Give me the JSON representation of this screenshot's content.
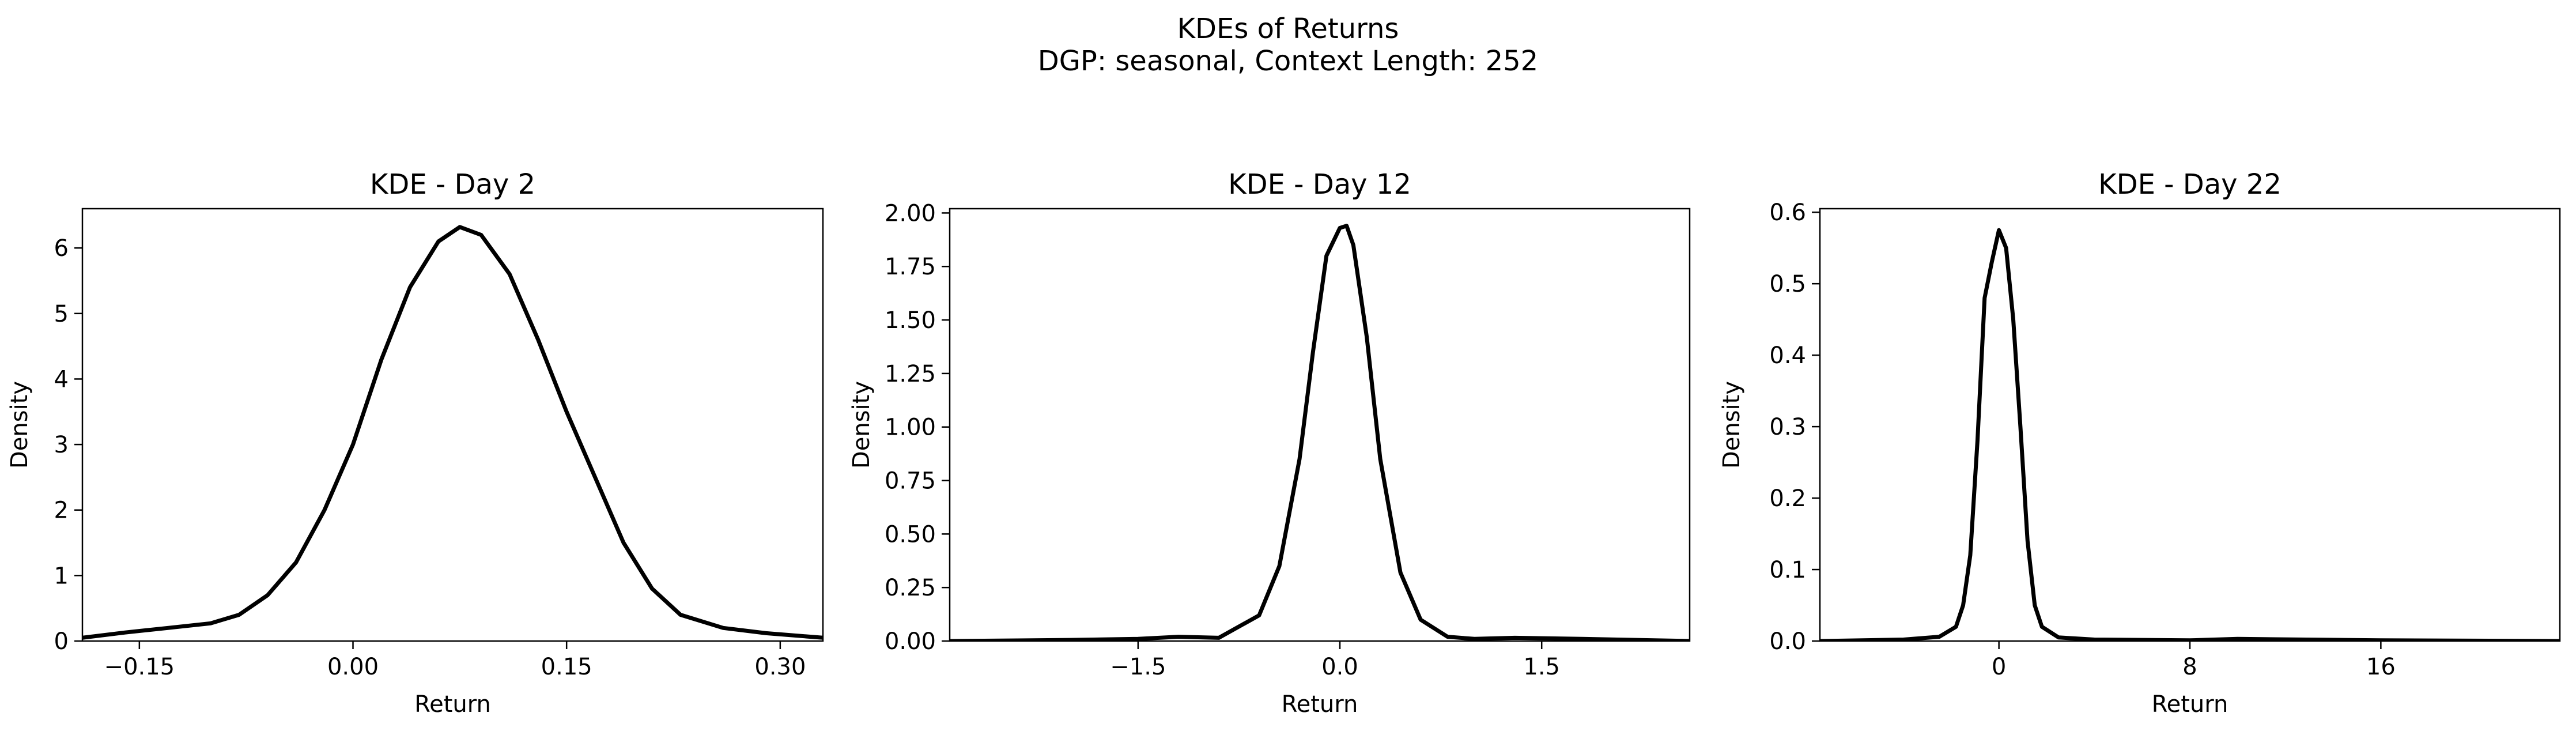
{
  "figure": {
    "title": "KDEs of Returns",
    "subtitle": "DGP: seasonal, Context Length: 252"
  },
  "chart_data": [
    {
      "type": "line",
      "title": "KDE - Day 2",
      "xlabel": "Return",
      "ylabel": "Density",
      "xlim": [
        -0.19,
        0.33
      ],
      "ylim": [
        0,
        6.6
      ],
      "xticks": [
        -0.15,
        0.0,
        0.15,
        0.3
      ],
      "xtick_labels": [
        "−0.15",
        "0.00",
        "0.15",
        "0.30"
      ],
      "yticks": [
        0,
        1,
        2,
        3,
        4,
        5,
        6
      ],
      "ytick_labels": [
        "0",
        "1",
        "2",
        "3",
        "4",
        "5",
        "6"
      ],
      "grid": false,
      "series": [
        {
          "color": "#000000",
          "x": [
            -0.19,
            -0.16,
            -0.13,
            -0.1,
            -0.08,
            -0.06,
            -0.04,
            -0.02,
            0.0,
            0.02,
            0.04,
            0.06,
            0.075,
            0.09,
            0.11,
            0.13,
            0.15,
            0.17,
            0.19,
            0.21,
            0.23,
            0.26,
            0.29,
            0.33
          ],
          "y": [
            0.05,
            0.13,
            0.2,
            0.27,
            0.4,
            0.7,
            1.2,
            2.0,
            3.0,
            4.3,
            5.4,
            6.1,
            6.32,
            6.2,
            5.6,
            4.6,
            3.5,
            2.5,
            1.5,
            0.8,
            0.4,
            0.2,
            0.12,
            0.05
          ]
        }
      ]
    },
    {
      "type": "line",
      "title": "KDE - Day 12",
      "xlabel": "Return",
      "ylabel": "Density",
      "xlim": [
        -2.9,
        2.6
      ],
      "ylim": [
        0,
        2.02
      ],
      "xticks": [
        -1.5,
        0.0,
        1.5
      ],
      "xtick_labels": [
        "−1.5",
        "0.0",
        "1.5"
      ],
      "yticks": [
        0,
        0.25,
        0.5,
        0.75,
        1.0,
        1.25,
        1.5,
        1.75,
        2.0
      ],
      "ytick_labels": [
        "0.00",
        "0.25",
        "0.50",
        "0.75",
        "1.00",
        "1.25",
        "1.50",
        "1.75",
        "2.00"
      ],
      "grid": false,
      "series": [
        {
          "color": "#000000",
          "x": [
            -2.9,
            -2.0,
            -1.5,
            -1.2,
            -0.9,
            -0.6,
            -0.45,
            -0.3,
            -0.2,
            -0.1,
            0.0,
            0.05,
            0.1,
            0.2,
            0.3,
            0.45,
            0.6,
            0.8,
            1.0,
            1.3,
            1.8,
            2.6
          ],
          "y": [
            0.0,
            0.005,
            0.01,
            0.02,
            0.015,
            0.12,
            0.35,
            0.85,
            1.35,
            1.8,
            1.93,
            1.94,
            1.85,
            1.42,
            0.85,
            0.32,
            0.1,
            0.02,
            0.01,
            0.015,
            0.01,
            0.0
          ]
        }
      ]
    },
    {
      "type": "line",
      "title": "KDE - Day 22",
      "xlabel": "Return",
      "ylabel": "Density",
      "xlim": [
        -7.5,
        23.5
      ],
      "ylim": [
        0,
        0.605
      ],
      "xticks": [
        0,
        8,
        16
      ],
      "xtick_labels": [
        "0",
        "8",
        "16"
      ],
      "yticks": [
        0,
        0.1,
        0.2,
        0.3,
        0.4,
        0.5,
        0.6
      ],
      "ytick_labels": [
        "0.0",
        "0.1",
        "0.2",
        "0.3",
        "0.4",
        "0.5",
        "0.6"
      ],
      "grid": false,
      "series": [
        {
          "color": "#000000",
          "x": [
            -7.5,
            -4.0,
            -2.5,
            -1.8,
            -1.5,
            -1.2,
            -0.9,
            -0.6,
            -0.3,
            0.0,
            0.3,
            0.6,
            0.9,
            1.2,
            1.5,
            1.8,
            2.5,
            4.0,
            8.0,
            10.0,
            16.0,
            23.5
          ],
          "y": [
            0.0,
            0.002,
            0.006,
            0.02,
            0.05,
            0.12,
            0.28,
            0.48,
            0.53,
            0.575,
            0.55,
            0.45,
            0.3,
            0.14,
            0.05,
            0.02,
            0.005,
            0.002,
            0.001,
            0.003,
            0.001,
            0.0
          ]
        }
      ]
    }
  ]
}
